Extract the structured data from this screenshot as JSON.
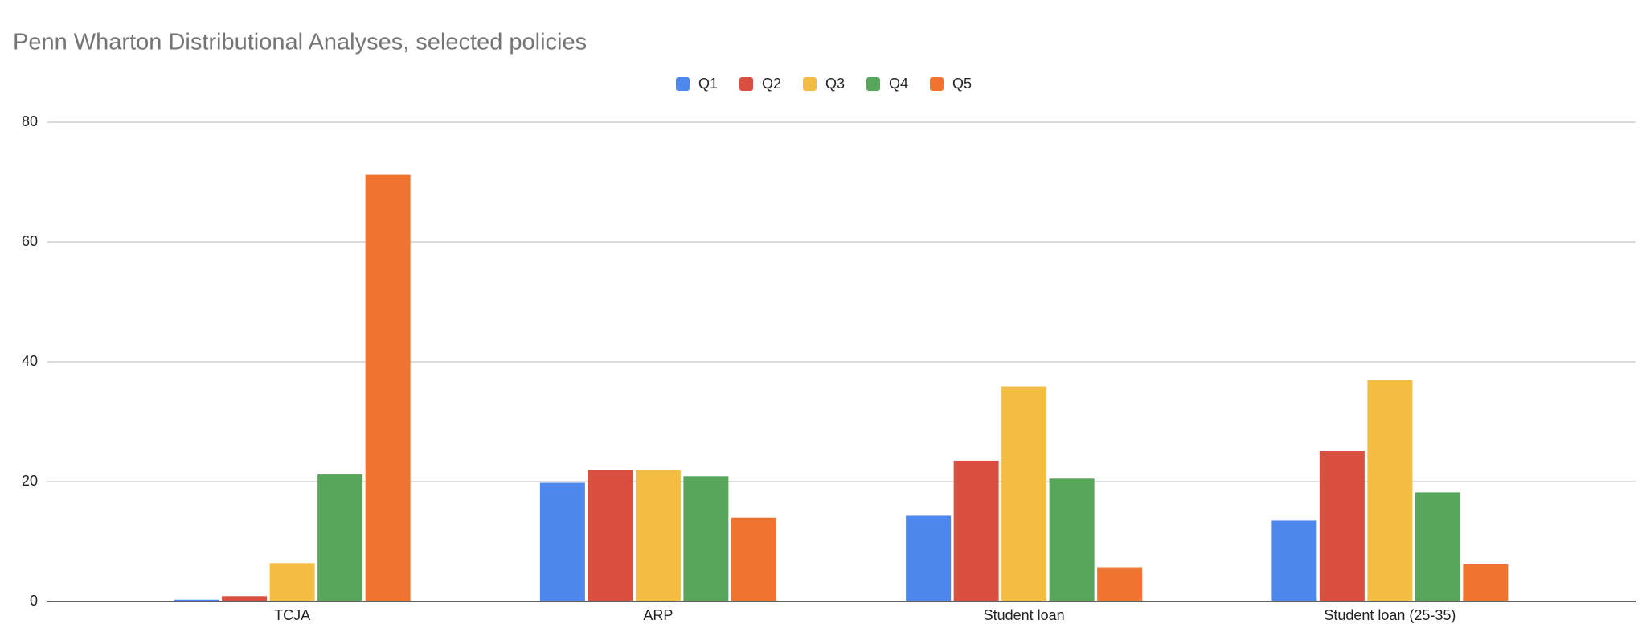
{
  "chart_data": {
    "type": "bar",
    "title": "Penn Wharton Distributional Analyses, selected policies",
    "categories": [
      "TCJA",
      "ARP",
      "Student loan",
      "Student loan (25-35)"
    ],
    "series": [
      {
        "name": "Q1",
        "color": "#4e88ec",
        "values": [
          0.3,
          19.8,
          14.3,
          13.5
        ]
      },
      {
        "name": "Q2",
        "color": "#d95040",
        "values": [
          0.9,
          22,
          23.5,
          25.1
        ]
      },
      {
        "name": "Q3",
        "color": "#f2bd42",
        "values": [
          6.4,
          22,
          35.9,
          37
        ]
      },
      {
        "name": "Q4",
        "color": "#58a55c",
        "values": [
          21.2,
          20.9,
          20.5,
          18.2
        ]
      },
      {
        "name": "Q5",
        "color": "#ee7430",
        "values": [
          71.2,
          14,
          5.7,
          6.2
        ]
      }
    ],
    "ylim": [
      0,
      80
    ],
    "yticks": [
      0,
      20,
      40,
      60,
      80
    ],
    "grid": true,
    "legend": "top"
  }
}
